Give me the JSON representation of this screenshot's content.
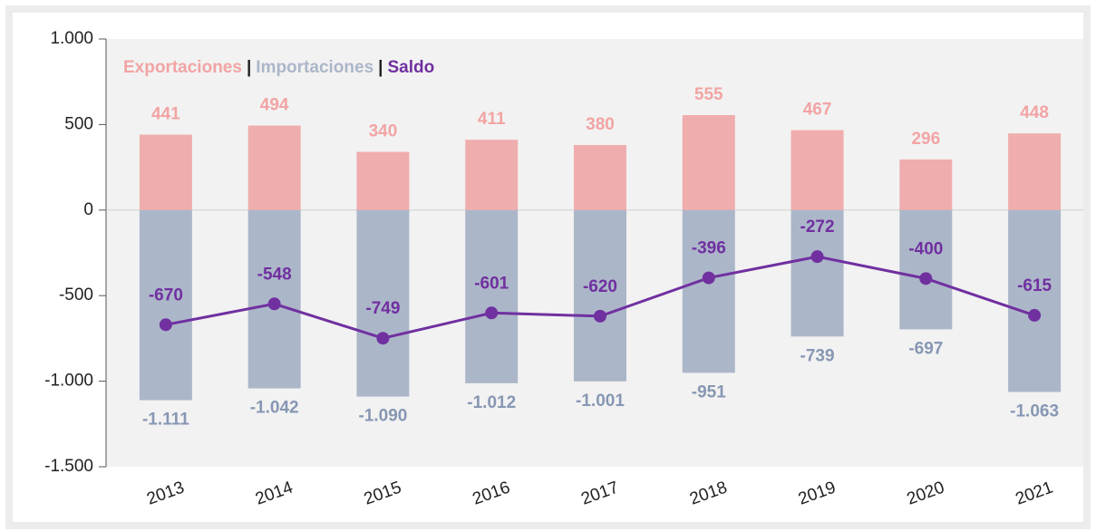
{
  "chart_data": {
    "type": "bar",
    "categories": [
      "2013",
      "2014",
      "2015",
      "2016",
      "2017",
      "2018",
      "2019",
      "2020",
      "2021"
    ],
    "series": [
      {
        "name": "Exportaciones",
        "color": "#f0adad",
        "label_color": "#f2a4a4",
        "type": "bar",
        "values": [
          441,
          494,
          340,
          411,
          380,
          555,
          467,
          296,
          448
        ]
      },
      {
        "name": "Importaciones",
        "color": "#acb6c9",
        "label_color": "#8797b3",
        "type": "bar",
        "values": [
          -1111,
          -1042,
          -1090,
          -1012,
          -1001,
          -951,
          -739,
          -697,
          -1063
        ],
        "value_labels": [
          "-1.111",
          "-1.042",
          "-1.090",
          "-1.012",
          "-1.001",
          "-951",
          "-739",
          "-697",
          "-1.063"
        ]
      },
      {
        "name": "Saldo",
        "color": "#7030a0",
        "label_color": "#7030a0",
        "type": "line",
        "values": [
          -670,
          -548,
          -749,
          -601,
          -620,
          -396,
          -272,
          -400,
          -615
        ]
      }
    ],
    "legend_separator": "|",
    "ylim": [
      -1500,
      1000
    ],
    "yticks": [
      {
        "value": -1500,
        "label": "-1.500"
      },
      {
        "value": -1000,
        "label": "-1.000"
      },
      -500,
      0,
      500,
      {
        "value": 1000,
        "label": "1.000"
      }
    ]
  }
}
